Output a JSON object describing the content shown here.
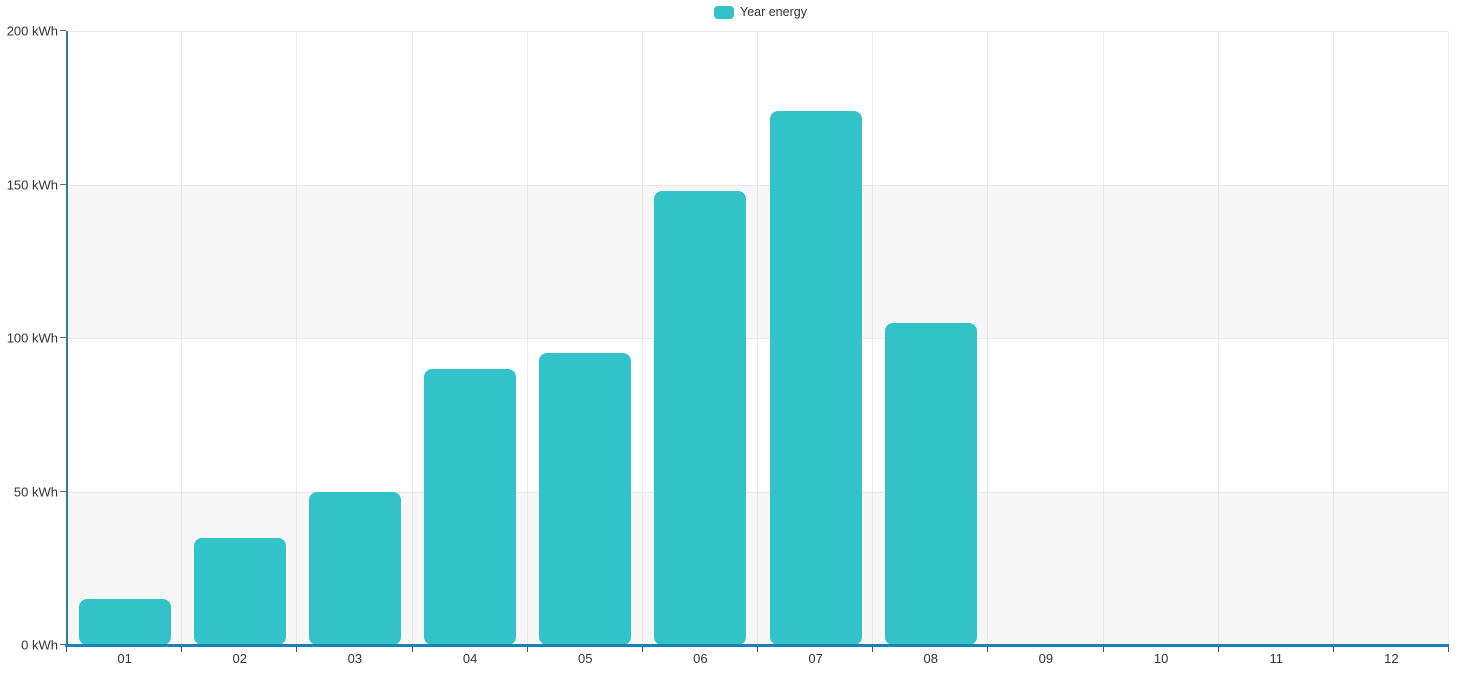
{
  "legend": {
    "label": "Year energy",
    "swatch_color": "#31c3c8"
  },
  "chart_data": {
    "type": "bar",
    "title": "",
    "xlabel": "",
    "ylabel": "",
    "unit": "kWh",
    "categories": [
      "01",
      "02",
      "03",
      "04",
      "05",
      "06",
      "07",
      "08",
      "09",
      "10",
      "11",
      "12"
    ],
    "series": [
      {
        "name": "Year energy",
        "values": [
          15,
          35,
          50,
          90,
          95,
          148,
          174,
          105,
          0,
          0,
          0,
          0
        ]
      }
    ],
    "ylim": [
      0,
      200
    ],
    "y_tick_interval": 50,
    "y_tick_labels": [
      "0 kWh",
      "50 kWh",
      "100 kWh",
      "150 kWh",
      "200 kWh"
    ],
    "grid": true,
    "legend_position": "top-center",
    "colors": {
      "bar": "#31c3c8",
      "y_axis_line": "#2a7f99",
      "x_axis_line": "#1b80b4",
      "grid_line": "#e9e9e9",
      "split_area_even": "#ffffff",
      "split_area_odd": "#f7f7f7",
      "tick": "#555555",
      "label_text": "#333333"
    }
  }
}
